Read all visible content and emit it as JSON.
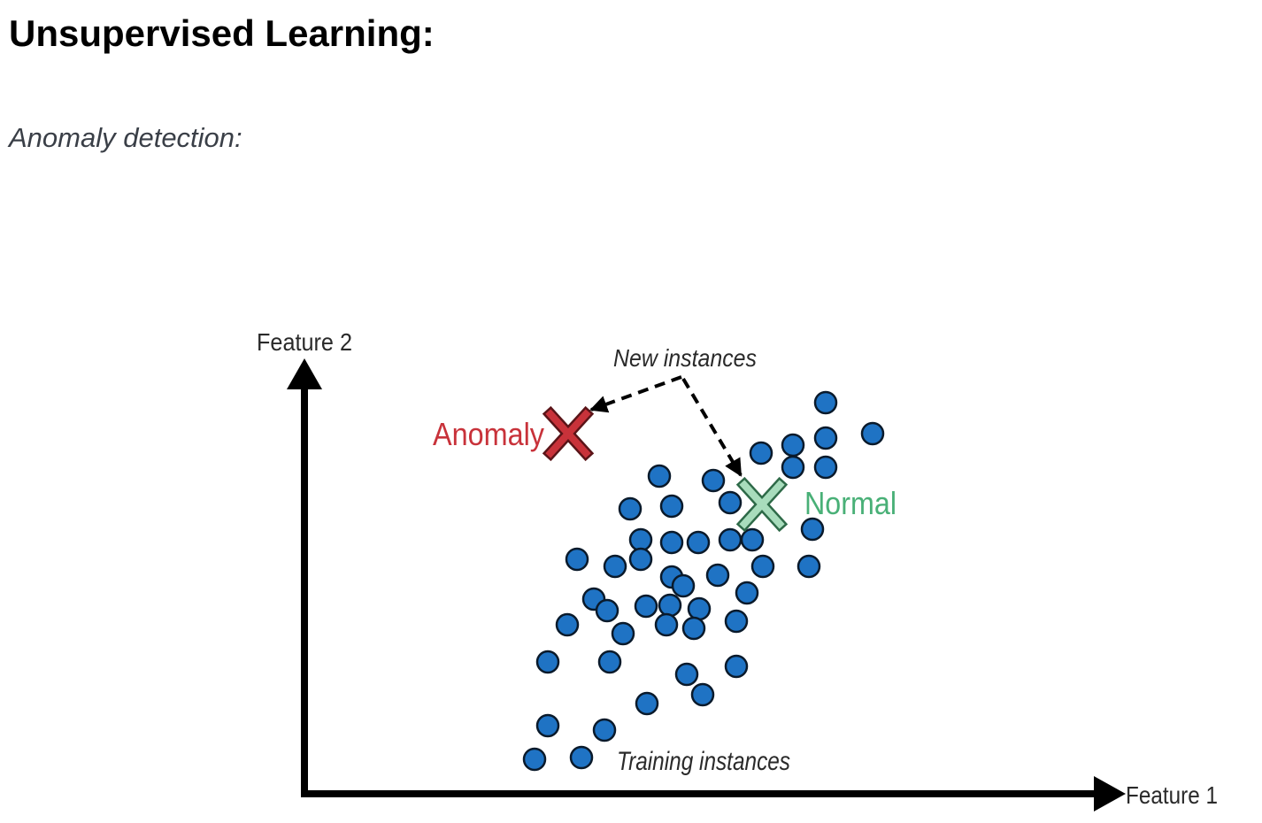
{
  "header": {
    "title": "Unsupervised Learning:",
    "subtitle": "Anomaly detection:"
  },
  "diagram": {
    "axis_x_label": "Feature 1",
    "axis_y_label": "Feature 2",
    "new_instances_label": "New instances",
    "anomaly_label": "Anomaly",
    "normal_label": "Normal",
    "training_label": "Training instances",
    "colors": {
      "axis": "#000000",
      "point_fill": "#1f73c4",
      "point_stroke": "#0a1a2b",
      "anomaly": "#c8323a",
      "normal": "#49b077",
      "normal_fill": "#a8dcbc",
      "text": "#2a2a2a"
    }
  }
}
